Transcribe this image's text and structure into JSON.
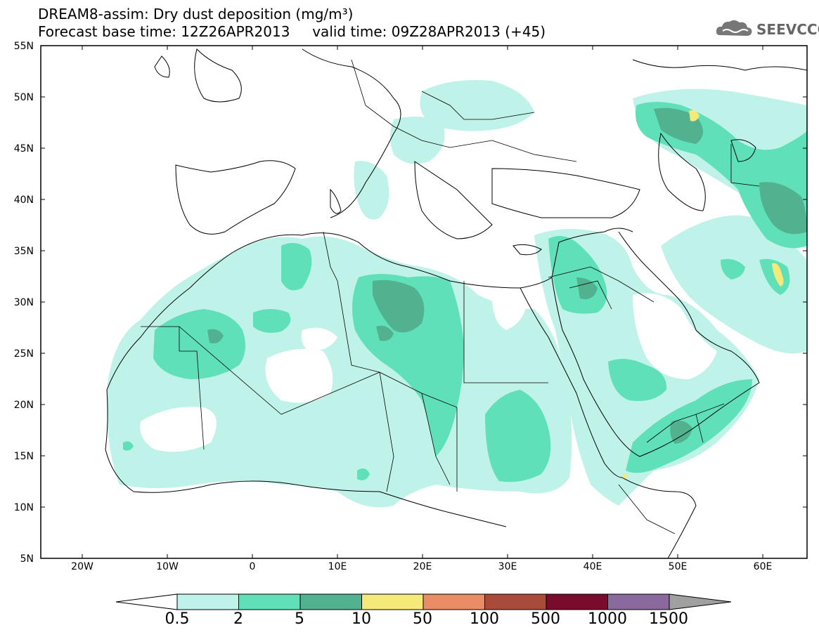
{
  "header": {
    "title_line1": "DREAM8-assim: Dry dust deposition (mg/m³)",
    "title_line2": "Forecast base time: 12Z26APR2013     valid time: 09Z28APR2013 (+45)",
    "logo_text": "SEEVCCC",
    "logo_icon": "cloud-icon"
  },
  "map": {
    "latitude_labels": [
      "55N",
      "50N",
      "45N",
      "40N",
      "35N",
      "30N",
      "25N",
      "20N",
      "15N",
      "10N",
      "5N"
    ],
    "longitude_labels": [
      "20W",
      "10W",
      "0",
      "10E",
      "20E",
      "30E",
      "40E",
      "50E",
      "60E"
    ]
  },
  "colorbar": {
    "labels": [
      "0.5",
      "2",
      "5",
      "10",
      "50",
      "100",
      "500",
      "1000",
      "1500"
    ],
    "colors": [
      "#ffffff",
      "#bff2e9",
      "#5fe0b9",
      "#52b18f",
      "#f5e97a",
      "#ea8d66",
      "#a84b3a",
      "#7a0b2c",
      "#8a6a9e",
      "#a0a0a0"
    ]
  }
}
